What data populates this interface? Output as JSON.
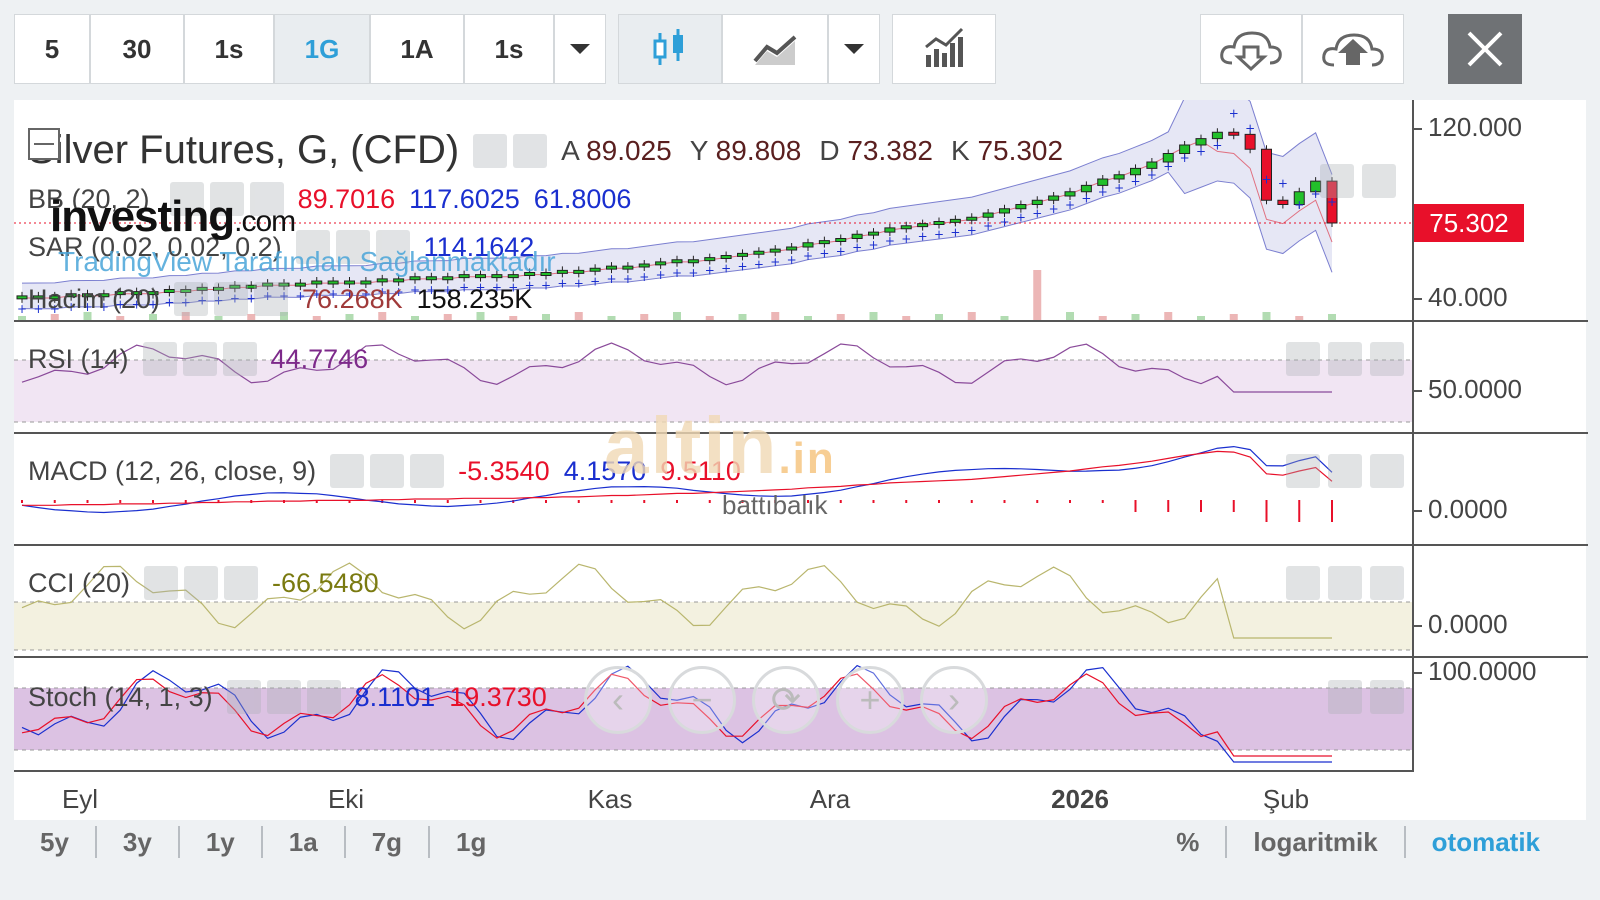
{
  "toolbar": {
    "intervals": [
      "5",
      "30",
      "1s",
      "1G",
      "1A",
      "1s"
    ],
    "active_interval": "1G",
    "icons": [
      "chevron-down-icon",
      "candlestick-icon",
      "line-chart-icon",
      "chevron-down-icon",
      "indicators-icon",
      "cloud-download-icon",
      "cloud-upload-icon",
      "close-icon"
    ]
  },
  "colors": {
    "up": "#22c02a",
    "down": "#e8102a",
    "accent": "#2e9fd8",
    "bb_fill": "#e6e7f5",
    "rsi_fill": "#f1e5f3",
    "cci_fill": "#f3f1e0",
    "stoch_fill": "#dcc2e3"
  },
  "main": {
    "title": "Silver Futures, G, (CFD)",
    "ohlc": {
      "A_label": "A",
      "A": "89.025",
      "Y_label": "Y",
      "Y": "89.808",
      "D_label": "D",
      "D": "73.382",
      "K_label": "K",
      "K": "75.302"
    },
    "bb": {
      "label": "BB (20, 2)",
      "v1": "89.7016",
      "v2": "117.6025",
      "v3": "61.8006"
    },
    "sar": {
      "label": "SAR (0.02, 0.02, 0.2)",
      "v1": "114.1642"
    },
    "volume": {
      "label": "Hacim (20)",
      "v1": "76.268K",
      "v2": "158.235K"
    },
    "last_price": "75.302",
    "axis_ticks": [
      "120.000",
      "40.000"
    ]
  },
  "rsi": {
    "label": "RSI (14)",
    "value": "44.7746",
    "axis_tick": "50.0000"
  },
  "macd": {
    "label": "MACD (12, 26, close, 9)",
    "v1": "-5.3540",
    "v2": "4.1570",
    "v3": "9.5110",
    "axis_tick": "0.0000"
  },
  "cci": {
    "label": "CCI (20)",
    "value": "-66.5480",
    "axis_tick": "0.0000"
  },
  "stoch": {
    "label": "Stoch (14, 1, 3)",
    "v1": "8.1101",
    "v2": "19.3730",
    "axis_tick": "100.0000"
  },
  "x_axis": [
    "Eyl",
    "Eki",
    "Kas",
    "Ara",
    "2026",
    "Şub"
  ],
  "watermarks": {
    "investing": "investing",
    "investing_suffix": ".com",
    "tradingview": "TradingView Tarafından Sağlanmaktadır",
    "altin": "altin",
    "altin_suffix": ".in",
    "battibalik": "battıbalık"
  },
  "nav_controls": [
    "‹",
    "−",
    "⟳",
    "+",
    "›"
  ],
  "bottom_bar": {
    "ranges": [
      "5y",
      "3y",
      "1y",
      "1a",
      "7g",
      "1g"
    ],
    "right": [
      "%",
      "logaritmik",
      "otomatik"
    ],
    "active_right": "otomatik"
  },
  "chart_data": {
    "type": "candlestick",
    "title": "Silver Futures, G, (CFD)",
    "x_ticks": [
      "Eyl",
      "Eki",
      "Kas",
      "Ara",
      "2026",
      "Şub"
    ],
    "y_ticks": [
      "40.000",
      "120.000"
    ],
    "closes_approx": [
      41,
      41,
      41,
      42,
      42,
      42,
      43,
      43,
      43,
      44,
      44,
      45,
      45,
      46,
      46,
      47,
      47,
      47,
      48,
      48,
      48,
      48,
      49,
      49,
      50,
      50,
      50,
      51,
      51,
      51,
      51,
      52,
      52,
      53,
      53,
      54,
      55,
      55,
      56,
      57,
      58,
      58,
      59,
      60,
      61,
      62,
      63,
      64,
      66,
      67,
      68,
      70,
      71,
      73,
      74,
      75,
      76,
      77,
      78,
      80,
      82,
      84,
      86,
      88,
      90,
      93,
      96,
      98,
      101,
      104,
      108,
      112,
      115,
      118,
      117,
      110,
      86,
      84,
      90,
      95,
      75.3
    ],
    "last": 75.302,
    "open": 89.025,
    "high": 89.808,
    "low": 73.382,
    "close": 75.302
  }
}
